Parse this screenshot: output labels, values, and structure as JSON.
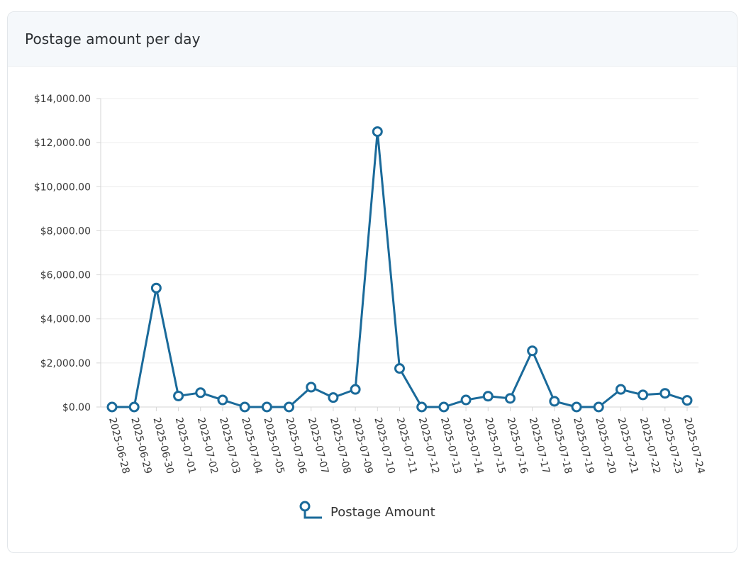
{
  "card": {
    "title": "Postage amount per day"
  },
  "chart_data": {
    "type": "line",
    "title": "Postage amount per day",
    "xlabel": "",
    "ylabel": "",
    "ylim": [
      0,
      14000
    ],
    "yticks": [
      "$0.00",
      "$2,000.00",
      "$4,000.00",
      "$6,000.00",
      "$8,000.00",
      "$10,000.00",
      "$12,000.00",
      "$14,000.00"
    ],
    "grid": true,
    "legend_position": "bottom",
    "x": [
      "2025-06-28",
      "2025-06-29",
      "2025-06-30",
      "2025-07-01",
      "2025-07-02",
      "2025-07-03",
      "2025-07-04",
      "2025-07-05",
      "2025-07-06",
      "2025-07-07",
      "2025-07-08",
      "2025-07-09",
      "2025-07-10",
      "2025-07-11",
      "2025-07-12",
      "2025-07-13",
      "2025-07-14",
      "2025-07-15",
      "2025-07-16",
      "2025-07-17",
      "2025-07-18",
      "2025-07-19",
      "2025-07-20",
      "2025-07-21",
      "2025-07-22",
      "2025-07-23",
      "2025-07-24"
    ],
    "series": [
      {
        "name": "Postage Amount",
        "color": "#1a6a9a",
        "values": [
          0,
          0,
          5400,
          500,
          650,
          320,
          0,
          0,
          0,
          900,
          430,
          800,
          12500,
          1750,
          0,
          0,
          320,
          490,
          390,
          2550,
          260,
          0,
          0,
          800,
          550,
          620,
          300
        ]
      }
    ]
  }
}
